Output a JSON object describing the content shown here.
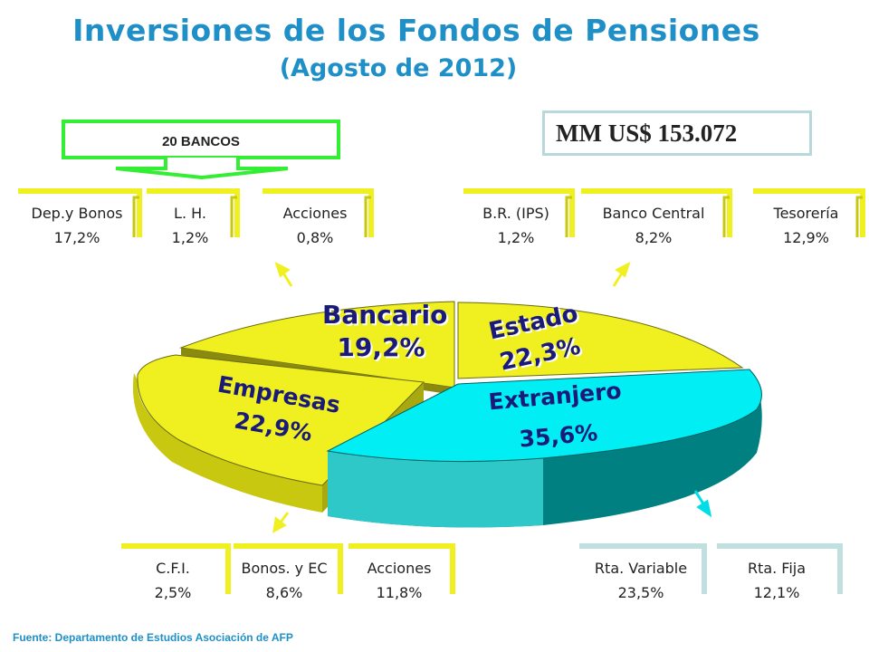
{
  "title": "Inversiones de los Fondos de Pensiones",
  "subtitle": "(Agosto de 2012)",
  "total_label": "MM US$ 153.072",
  "banks_label": "20 BANCOS",
  "source": "Fuente: Departamento  de Estudios Asociación de AFP",
  "colors": {
    "title": "#1f8fc8",
    "yellow": "#f0f020",
    "cyan": "#00e8f0",
    "bracket_yellow": "#f0f020",
    "bracket_teal": "#c0e0e0",
    "arrow_green": "#33ee33"
  },
  "chart_data": {
    "type": "pie",
    "title": "Inversiones de los Fondos de Pensiones",
    "slices": [
      {
        "name": "Bancario",
        "value": 19.2,
        "label": "19,2%",
        "color": "#f0f020"
      },
      {
        "name": "Estado",
        "value": 22.3,
        "label": "22,3%",
        "color": "#f0f020"
      },
      {
        "name": "Extranjero",
        "value": 35.6,
        "label": "35,6%",
        "color": "#00e8f0"
      },
      {
        "name": "Empresas",
        "value": 22.9,
        "label": "22,9%",
        "color": "#f0f020"
      }
    ],
    "breakdowns": {
      "bancario": [
        {
          "name": "Dep.y Bonos",
          "label": "17,2%",
          "value": 17.2
        },
        {
          "name": "L. H.",
          "label": "1,2%",
          "value": 1.2
        },
        {
          "name": "Acciones",
          "label": "0,8%",
          "value": 0.8
        }
      ],
      "estado": [
        {
          "name": "B.R. (IPS)",
          "label": "1,2%",
          "value": 1.2
        },
        {
          "name": "Banco Central",
          "label": "8,2%",
          "value": 8.2
        },
        {
          "name": "Tesorería",
          "label": "12,9%",
          "value": 12.9
        }
      ],
      "empresas": [
        {
          "name": "C.F.I.",
          "label": "2,5%",
          "value": 2.5
        },
        {
          "name": "Bonos. y EC",
          "label": "8,6%",
          "value": 8.6
        },
        {
          "name": "Acciones",
          "label": "11,8%",
          "value": 11.8
        }
      ],
      "extranjero": [
        {
          "name": "Rta. Variable",
          "label": "23,5%",
          "value": 23.5
        },
        {
          "name": "Rta. Fija",
          "label": "12,1%",
          "value": 12.1
        }
      ]
    }
  }
}
